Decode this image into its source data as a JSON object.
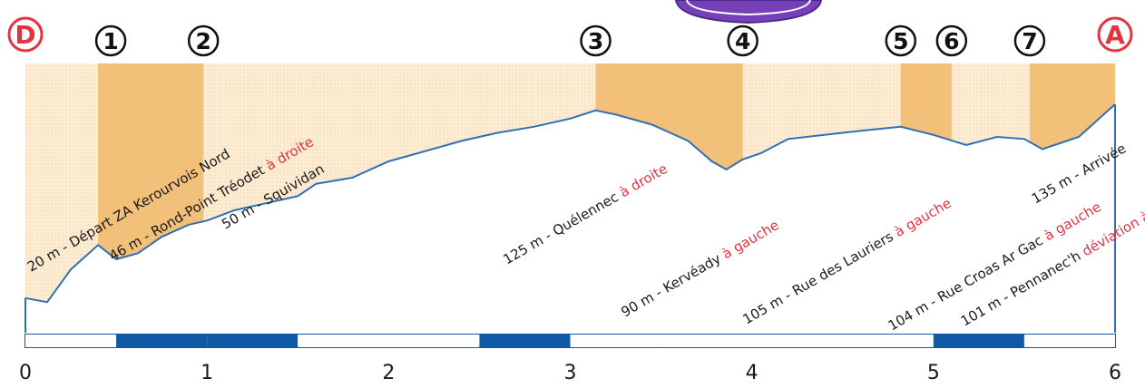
{
  "chart_data": {
    "type": "area",
    "x_axis": {
      "ticks": [
        "0",
        "1",
        "2",
        "3",
        "4",
        "5",
        "6"
      ],
      "range": [
        0,
        6
      ]
    },
    "start_marker": "D",
    "end_marker": "A",
    "waypoints": [
      {
        "num": "1",
        "km_from": 0.4,
        "km_to": 0.98
      },
      {
        "num": "2",
        "km_from": 0.98,
        "km_to": 0.98
      },
      {
        "num": "3",
        "km_from": 3.14,
        "km_to": 3.95
      },
      {
        "num": "4",
        "km_from": 3.95,
        "km_to": 3.95
      },
      {
        "num": "5",
        "km_from": 4.82,
        "km_to": 5.1
      },
      {
        "num": "6",
        "km_from": 5.1,
        "km_to": 5.1
      },
      {
        "num": "7",
        "km_from": 5.53,
        "km_to": 6.0
      }
    ],
    "profile": [
      [
        0.0,
        0.05
      ],
      [
        0.12,
        0.03
      ],
      [
        0.25,
        0.19
      ],
      [
        0.4,
        0.31
      ],
      [
        0.5,
        0.24
      ],
      [
        0.62,
        0.27
      ],
      [
        0.75,
        0.35
      ],
      [
        0.9,
        0.41
      ],
      [
        1.0,
        0.43
      ],
      [
        1.15,
        0.48
      ],
      [
        1.3,
        0.51
      ],
      [
        1.5,
        0.55
      ],
      [
        1.6,
        0.61
      ],
      [
        1.8,
        0.64
      ],
      [
        2.0,
        0.72
      ],
      [
        2.2,
        0.77
      ],
      [
        2.4,
        0.82
      ],
      [
        2.6,
        0.86
      ],
      [
        2.8,
        0.89
      ],
      [
        3.0,
        0.93
      ],
      [
        3.14,
        0.97
      ],
      [
        3.25,
        0.95
      ],
      [
        3.45,
        0.9
      ],
      [
        3.65,
        0.82
      ],
      [
        3.78,
        0.72
      ],
      [
        3.86,
        0.68
      ],
      [
        3.95,
        0.73
      ],
      [
        4.05,
        0.76
      ],
      [
        4.2,
        0.83
      ],
      [
        4.4,
        0.85
      ],
      [
        4.6,
        0.87
      ],
      [
        4.82,
        0.89
      ],
      [
        5.0,
        0.85
      ],
      [
        5.18,
        0.8
      ],
      [
        5.35,
        0.84
      ],
      [
        5.5,
        0.83
      ],
      [
        5.6,
        0.78
      ],
      [
        5.8,
        0.84
      ],
      [
        6.0,
        1.0
      ]
    ],
    "annotations": [
      {
        "km": 0.03,
        "text": "20 m - Départ ZA Kerourvois Nord",
        "accent": ""
      },
      {
        "km": 0.48,
        "text": "46 m - Rond-Point Tréodet ",
        "accent": "à droite"
      },
      {
        "km": 1.1,
        "text": "50 m - Squividan",
        "accent": ""
      },
      {
        "km": 2.65,
        "text": "125 m - Quélennec ",
        "accent": "à droite"
      },
      {
        "km": 3.3,
        "text": "90 m - Kervéady ",
        "accent": "à gauche"
      },
      {
        "km": 3.97,
        "text": "105 m - Rue des Lauriers ",
        "accent": "à gauche"
      },
      {
        "km": 4.77,
        "text": "104 m - Rue Croas Ar Gac ",
        "accent": "à gauche"
      },
      {
        "km": 5.17,
        "text": "101 m - Pennanec'h ",
        "accent": "déviation à droite"
      },
      {
        "km": 5.56,
        "text": "135 m - Arrivée",
        "accent": ""
      }
    ],
    "colors": {
      "line": "#2f6fb7",
      "fill_light": "#fcecd3",
      "fill_dark": "#f3c07a",
      "scalebar": "#0f5aa6",
      "marker_red": "#e5323f",
      "text": "#1a1a1a",
      "accent": "#e5323f",
      "badge": "#7640b8"
    }
  }
}
